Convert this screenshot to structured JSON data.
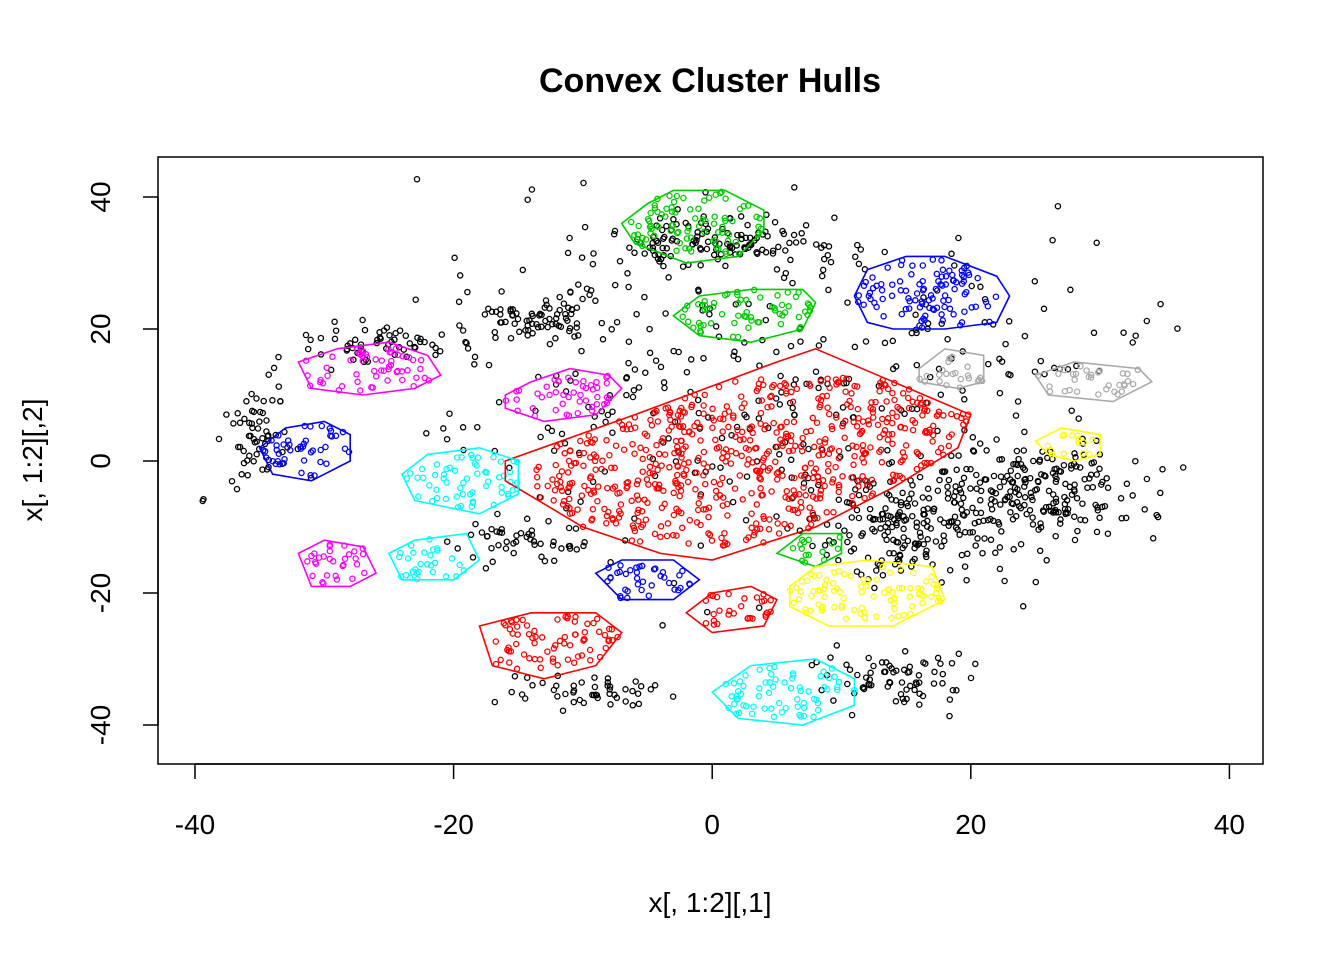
{
  "chart_data": {
    "type": "scatter",
    "title": "Convex Cluster Hulls",
    "xlabel": "x[, 1:2][,1]",
    "ylabel": "x[, 1:2][,2]",
    "xlim": [
      -40,
      40
    ],
    "ylim": [
      -40,
      40
    ],
    "xticks": [
      -40,
      -20,
      0,
      20,
      40
    ],
    "yticks": [
      -40,
      -20,
      0,
      20,
      40
    ],
    "xtick_labels": [
      "-40",
      "-20",
      "0",
      "20",
      "40"
    ],
    "ytick_labels": [
      "-40",
      "-20",
      "0",
      "20",
      "40"
    ],
    "grid": false,
    "legend": "none",
    "noise_color": "#000000",
    "clusters": [
      {
        "color": "#ff0000",
        "center": [
          3,
          0
        ],
        "spread": [
          12,
          8
        ],
        "hull": [
          [
            -16,
            0
          ],
          [
            -6,
            7
          ],
          [
            5,
            15
          ],
          [
            8,
            17
          ],
          [
            20,
            7
          ],
          [
            19,
            2
          ],
          [
            14,
            -4
          ],
          [
            8,
            -10
          ],
          [
            0,
            -15
          ],
          [
            -4,
            -14
          ],
          [
            -10,
            -10
          ],
          [
            -16,
            -3
          ]
        ]
      },
      {
        "color": "#00cc00",
        "center": [
          -1,
          36
        ],
        "spread": [
          4,
          3
        ],
        "hull": [
          [
            -7,
            36
          ],
          [
            -5,
            39
          ],
          [
            -3,
            41
          ],
          [
            1,
            41
          ],
          [
            4,
            38
          ],
          [
            4,
            35
          ],
          [
            2,
            31
          ],
          [
            -2,
            30
          ],
          [
            -6,
            33
          ]
        ]
      },
      {
        "color": "#00cc00",
        "center": [
          3,
          22.5
        ],
        "spread": [
          4,
          2.5
        ],
        "hull": [
          [
            -3,
            22
          ],
          [
            -1,
            25
          ],
          [
            3,
            26
          ],
          [
            7,
            26
          ],
          [
            8,
            24
          ],
          [
            7,
            20
          ],
          [
            3,
            18
          ],
          [
            -1,
            19
          ]
        ]
      },
      {
        "color": "#0000ff",
        "center": [
          17,
          25
        ],
        "spread": [
          4.5,
          3.5
        ],
        "hull": [
          [
            11,
            25
          ],
          [
            12,
            29
          ],
          [
            15,
            31
          ],
          [
            18,
            31
          ],
          [
            22,
            28
          ],
          [
            23,
            25
          ],
          [
            22,
            21
          ],
          [
            18,
            20
          ],
          [
            14,
            20
          ],
          [
            12,
            21
          ]
        ]
      },
      {
        "color": "#ff00ff",
        "center": [
          -27,
          14.5
        ],
        "spread": [
          4.5,
          2.5
        ],
        "hull": [
          [
            -32,
            15
          ],
          [
            -29,
            17
          ],
          [
            -25,
            18
          ],
          [
            -22,
            16
          ],
          [
            -21,
            13
          ],
          [
            -23,
            11
          ],
          [
            -27,
            10
          ],
          [
            -31,
            11
          ]
        ]
      },
      {
        "color": "#ff00ff",
        "center": [
          -12.5,
          10
        ],
        "spread": [
          3.5,
          2
        ],
        "hull": [
          [
            -16,
            10
          ],
          [
            -14,
            12
          ],
          [
            -11,
            14
          ],
          [
            -8,
            13
          ],
          [
            -7,
            11
          ],
          [
            -9,
            7
          ],
          [
            -13,
            6
          ],
          [
            -16,
            8
          ]
        ]
      },
      {
        "color": "#0000ff",
        "center": [
          -32,
          1.5
        ],
        "spread": [
          3,
          2.5
        ],
        "hull": [
          [
            -35,
            2
          ],
          [
            -33,
            5
          ],
          [
            -30,
            6
          ],
          [
            -28,
            4
          ],
          [
            -28,
            0
          ],
          [
            -31,
            -3
          ],
          [
            -34,
            -2
          ]
        ]
      },
      {
        "color": "#00ffff",
        "center": [
          -19.5,
          -3
        ],
        "spread": [
          4,
          2.5
        ],
        "hull": [
          [
            -24,
            -2
          ],
          [
            -22,
            1
          ],
          [
            -18,
            2
          ],
          [
            -15,
            0
          ],
          [
            -15,
            -5
          ],
          [
            -18,
            -8
          ],
          [
            -23,
            -6
          ]
        ]
      },
      {
        "color": "#00ffff",
        "center": [
          -22,
          -15
        ],
        "spread": [
          3.5,
          2
        ],
        "hull": [
          [
            -25,
            -14
          ],
          [
            -23,
            -12
          ],
          [
            -19,
            -11
          ],
          [
            -18,
            -15
          ],
          [
            -20,
            -18
          ],
          [
            -24,
            -18
          ]
        ]
      },
      {
        "color": "#ff00ff",
        "center": [
          -29.5,
          -15.5
        ],
        "spread": [
          2.5,
          2
        ],
        "hull": [
          [
            -32,
            -14
          ],
          [
            -30,
            -12
          ],
          [
            -27,
            -13
          ],
          [
            -26,
            -17
          ],
          [
            -28,
            -19
          ],
          [
            -31,
            -19
          ]
        ]
      },
      {
        "color": "#0000ff",
        "center": [
          -5,
          -18.5
        ],
        "spread": [
          3,
          2
        ],
        "hull": [
          [
            -9,
            -17
          ],
          [
            -7,
            -15
          ],
          [
            -3,
            -15
          ],
          [
            -1,
            -18
          ],
          [
            -3,
            -21
          ],
          [
            -7,
            -21
          ]
        ]
      },
      {
        "color": "#00cc00",
        "center": [
          7.5,
          -13
        ],
        "spread": [
          2,
          1.5
        ],
        "hull": [
          [
            5,
            -14
          ],
          [
            7,
            -11
          ],
          [
            10,
            -11
          ],
          [
            10,
            -14
          ],
          [
            8,
            -16
          ]
        ]
      },
      {
        "color": "#ffff00",
        "center": [
          12,
          -20
        ],
        "spread": [
          4.5,
          2.5
        ],
        "hull": [
          [
            6,
            -19
          ],
          [
            8,
            -16
          ],
          [
            12,
            -15
          ],
          [
            17,
            -16
          ],
          [
            18,
            -21
          ],
          [
            14,
            -25
          ],
          [
            9,
            -25
          ],
          [
            6,
            -22
          ]
        ]
      },
      {
        "color": "#ff0000",
        "center": [
          1.5,
          -22.5
        ],
        "spread": [
          2.5,
          1.5
        ],
        "hull": [
          [
            -2,
            -23
          ],
          [
            0,
            -20
          ],
          [
            3,
            -19
          ],
          [
            5,
            -21
          ],
          [
            4,
            -25
          ],
          [
            0,
            -26
          ]
        ]
      },
      {
        "color": "#ff0000",
        "center": [
          -12.5,
          -27.5
        ],
        "spread": [
          4,
          2.5
        ],
        "hull": [
          [
            -18,
            -25
          ],
          [
            -14,
            -23
          ],
          [
            -9,
            -23
          ],
          [
            -7,
            -26
          ],
          [
            -9,
            -31
          ],
          [
            -13,
            -33
          ],
          [
            -17,
            -31
          ]
        ]
      },
      {
        "color": "#00ffff",
        "center": [
          5.5,
          -35
        ],
        "spread": [
          4,
          2.5
        ],
        "hull": [
          [
            0,
            -35
          ],
          [
            3,
            -31
          ],
          [
            8,
            -30
          ],
          [
            11,
            -33
          ],
          [
            11,
            -37
          ],
          [
            7,
            -40
          ],
          [
            2,
            -39
          ]
        ]
      },
      {
        "color": "#aaaaaa",
        "center": [
          18.5,
          13.5
        ],
        "spread": [
          2,
          1.5
        ],
        "hull": [
          [
            16,
            14
          ],
          [
            18,
            17
          ],
          [
            21,
            16
          ],
          [
            21,
            12
          ],
          [
            19,
            11
          ],
          [
            16,
            12
          ]
        ]
      },
      {
        "color": "#aaaaaa",
        "center": [
          30,
          12
        ],
        "spread": [
          3.5,
          1.5
        ],
        "hull": [
          [
            25,
            13
          ],
          [
            28,
            15
          ],
          [
            33,
            14
          ],
          [
            34,
            12
          ],
          [
            31,
            9
          ],
          [
            26,
            10
          ]
        ]
      },
      {
        "color": "#ffff00",
        "center": [
          27.5,
          2.5
        ],
        "spread": [
          1.5,
          1
        ],
        "hull": [
          [
            25,
            3
          ],
          [
            27,
            5
          ],
          [
            30,
            4
          ],
          [
            30,
            1
          ],
          [
            28,
            0
          ],
          [
            26,
            1
          ]
        ]
      }
    ],
    "noise_regions": [
      {
        "center": [
          -13,
          22
        ],
        "spread": [
          4.5,
          3
        ]
      },
      {
        "center": [
          0,
          33
        ],
        "spread": [
          7,
          3
        ]
      },
      {
        "center": [
          15,
          -10
        ],
        "spread": [
          6,
          5
        ]
      },
      {
        "center": [
          25,
          -5
        ],
        "spread": [
          6,
          6
        ]
      },
      {
        "center": [
          -14,
          -12
        ],
        "spread": [
          4,
          2
        ]
      },
      {
        "center": [
          -26,
          18
        ],
        "spread": [
          5,
          2
        ]
      },
      {
        "center": [
          -10,
          -35
        ],
        "spread": [
          4,
          2
        ]
      },
      {
        "center": [
          14,
          -33
        ],
        "spread": [
          4,
          3
        ]
      },
      {
        "center": [
          -35,
          4
        ],
        "spread": [
          2,
          5
        ]
      },
      {
        "center": [
          5,
          12
        ],
        "spread": [
          20,
          18
        ]
      },
      {
        "center": [
          -39,
          -6
        ],
        "spread": [
          0.5,
          0.5
        ]
      }
    ]
  }
}
